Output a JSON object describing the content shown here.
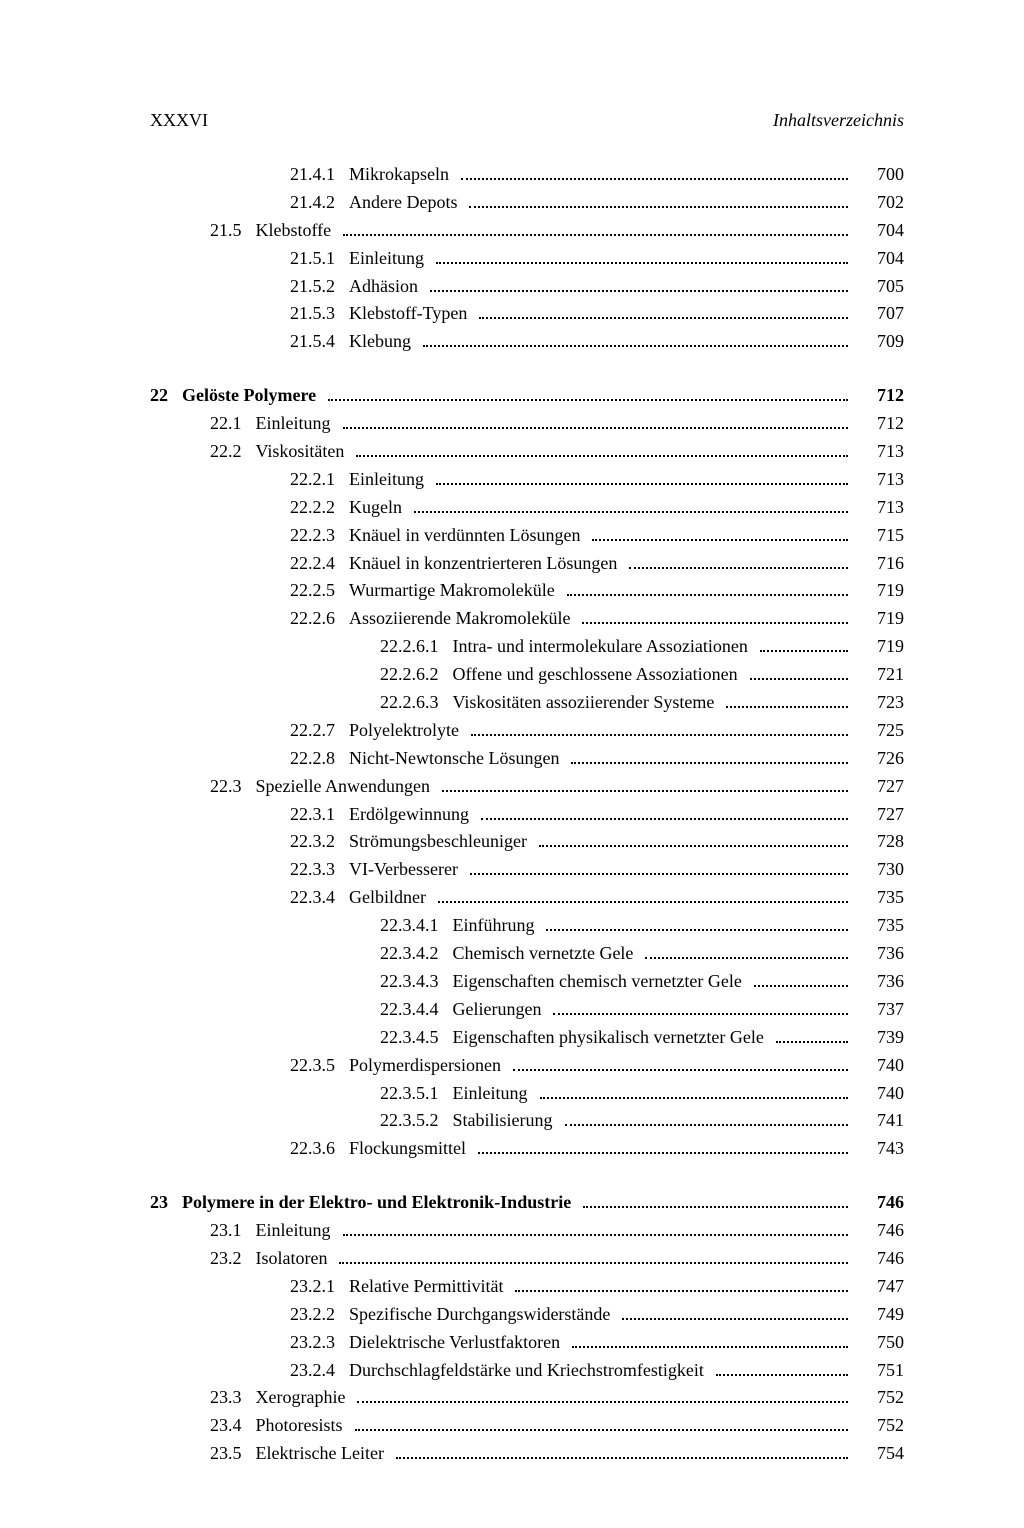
{
  "header": {
    "left": "XXXVI",
    "right": "Inhaltsverzeichnis"
  },
  "entries": [
    {
      "level": 2,
      "num": "21.4.1",
      "title": "Mikrokapseln",
      "page": "700",
      "bold": false
    },
    {
      "level": 2,
      "num": "21.4.2",
      "title": "Andere Depots",
      "page": "702",
      "bold": false
    },
    {
      "level": 1,
      "num": "21.5",
      "title": "Klebstoffe",
      "page": "704",
      "bold": false
    },
    {
      "level": 2,
      "num": "21.5.1",
      "title": "Einleitung",
      "page": "704",
      "bold": false
    },
    {
      "level": 2,
      "num": "21.5.2",
      "title": "Adhäsion",
      "page": "705",
      "bold": false
    },
    {
      "level": 2,
      "num": "21.5.3",
      "title": "Klebstoff-Typen",
      "page": "707",
      "bold": false
    },
    {
      "level": 2,
      "num": "21.5.4",
      "title": "Klebung",
      "page": "709",
      "bold": false
    },
    {
      "gap": true
    },
    {
      "level": 0,
      "num": "22",
      "title": "Gelöste Polymere",
      "page": "712",
      "bold": true
    },
    {
      "level": 1,
      "num": "22.1",
      "title": "Einleitung",
      "page": "712",
      "bold": false
    },
    {
      "level": 1,
      "num": "22.2",
      "title": "Viskositäten",
      "page": "713",
      "bold": false
    },
    {
      "level": 2,
      "num": "22.2.1",
      "title": "Einleitung",
      "page": "713",
      "bold": false
    },
    {
      "level": 2,
      "num": "22.2.2",
      "title": "Kugeln",
      "page": "713",
      "bold": false
    },
    {
      "level": 2,
      "num": "22.2.3",
      "title": "Knäuel in verdünnten Lösungen",
      "page": "715",
      "bold": false
    },
    {
      "level": 2,
      "num": "22.2.4",
      "title": "Knäuel in konzentrierteren Lösungen",
      "page": "716",
      "bold": false
    },
    {
      "level": 2,
      "num": "22.2.5",
      "title": "Wurmartige Makromoleküle",
      "page": "719",
      "bold": false
    },
    {
      "level": 2,
      "num": "22.2.6",
      "title": "Assoziierende Makromoleküle",
      "page": "719",
      "bold": false
    },
    {
      "level": 3,
      "num": "22.2.6.1",
      "title": "Intra- und intermolekulare Assoziationen",
      "page": "719",
      "bold": false
    },
    {
      "level": 3,
      "num": "22.2.6.2",
      "title": "Offene und geschlossene Assoziationen",
      "page": "721",
      "bold": false
    },
    {
      "level": 3,
      "num": "22.2.6.3",
      "title": "Viskositäten assoziierender Systeme",
      "page": "723",
      "bold": false
    },
    {
      "level": 2,
      "num": "22.2.7",
      "title": "Polyelektrolyte",
      "page": "725",
      "bold": false
    },
    {
      "level": 2,
      "num": "22.2.8",
      "title": "Nicht-Newtonsche Lösungen",
      "page": "726",
      "bold": false
    },
    {
      "level": 1,
      "num": "22.3",
      "title": "Spezielle Anwendungen",
      "page": "727",
      "bold": false
    },
    {
      "level": 2,
      "num": "22.3.1",
      "title": "Erdölgewinnung",
      "page": "727",
      "bold": false
    },
    {
      "level": 2,
      "num": "22.3.2",
      "title": "Strömungsbeschleuniger",
      "page": "728",
      "bold": false
    },
    {
      "level": 2,
      "num": "22.3.3",
      "title": "VI-Verbesserer",
      "page": "730",
      "bold": false
    },
    {
      "level": 2,
      "num": "22.3.4",
      "title": "Gelbildner",
      "page": "735",
      "bold": false
    },
    {
      "level": 3,
      "num": "22.3.4.1",
      "title": "Einführung",
      "page": "735",
      "bold": false
    },
    {
      "level": 3,
      "num": "22.3.4.2",
      "title": "Chemisch vernetzte Gele",
      "page": "736",
      "bold": false
    },
    {
      "level": 3,
      "num": "22.3.4.3",
      "title": "Eigenschaften chemisch vernetzter Gele",
      "page": "736",
      "bold": false
    },
    {
      "level": 3,
      "num": "22.3.4.4",
      "title": "Gelierungen",
      "page": "737",
      "bold": false
    },
    {
      "level": 3,
      "num": "22.3.4.5",
      "title": "Eigenschaften physikalisch vernetzter Gele",
      "page": "739",
      "bold": false
    },
    {
      "level": 2,
      "num": "22.3.5",
      "title": "Polymerdispersionen",
      "page": "740",
      "bold": false
    },
    {
      "level": 3,
      "num": "22.3.5.1",
      "title": "Einleitung",
      "page": "740",
      "bold": false
    },
    {
      "level": 3,
      "num": "22.3.5.2",
      "title": "Stabilisierung",
      "page": "741",
      "bold": false
    },
    {
      "level": 2,
      "num": "22.3.6",
      "title": "Flockungsmittel",
      "page": "743",
      "bold": false
    },
    {
      "gap": true
    },
    {
      "level": 0,
      "num": "23",
      "title": "Polymere in der Elektro- und Elektronik-Industrie",
      "page": "746",
      "bold": true
    },
    {
      "level": 1,
      "num": "23.1",
      "title": "Einleitung",
      "page": "746",
      "bold": false
    },
    {
      "level": 1,
      "num": "23.2",
      "title": "Isolatoren",
      "page": "746",
      "bold": false
    },
    {
      "level": 2,
      "num": "23.2.1",
      "title": "Relative Permittivität",
      "page": "747",
      "bold": false
    },
    {
      "level": 2,
      "num": "23.2.2",
      "title": "Spezifische Durchgangswiderstände",
      "page": "749",
      "bold": false
    },
    {
      "level": 2,
      "num": "23.2.3",
      "title": "Dielektrische Verlustfaktoren",
      "page": "750",
      "bold": false
    },
    {
      "level": 2,
      "num": "23.2.4",
      "title": "Durchschlagfeldstärke und Kriechstromfestigkeit",
      "page": "751",
      "bold": false
    },
    {
      "level": 1,
      "num": "23.3",
      "title": "Xerographie",
      "page": "752",
      "bold": false
    },
    {
      "level": 1,
      "num": "23.4",
      "title": "Photoresists",
      "page": "752",
      "bold": false
    },
    {
      "level": 1,
      "num": "23.5",
      "title": "Elektrische Leiter",
      "page": "754",
      "bold": false
    }
  ]
}
